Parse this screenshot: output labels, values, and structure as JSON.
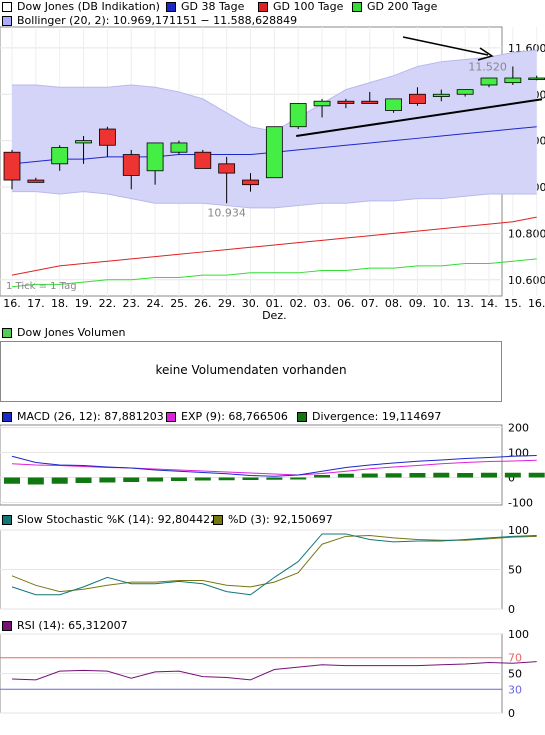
{
  "legend_main": {
    "items": [
      {
        "label": "Dow Jones (DB Indikation)",
        "color": "#ffffff"
      },
      {
        "label": "GD 38 Tage",
        "color": "#1c28c8"
      },
      {
        "label": "GD 100 Tage",
        "color": "#dd2222"
      },
      {
        "label": "GD 200 Tage",
        "color": "#33dd33"
      }
    ],
    "bollinger": {
      "label": "Bollinger (20, 2): 10.969,171151 − 11.588,628849",
      "color": "#aaaaff"
    }
  },
  "legend_volume": {
    "label": "Dow Jones Volumen",
    "color": "#55cc55"
  },
  "volume_message": "keine Volumendaten vorhanden",
  "legend_macd": [
    {
      "label": "MACD (26, 12): 87,881203",
      "color": "#1c28c8"
    },
    {
      "label": "EXP (9): 68,766506",
      "color": "#dd22dd"
    },
    {
      "label": "Divergence: 19,114697",
      "color": "#117711"
    }
  ],
  "legend_stoch": [
    {
      "label": "Slow Stochastic %K (14): 92,804422",
      "color": "#117777"
    },
    {
      "label": "%D (3): 92,150697",
      "color": "#777711"
    }
  ],
  "legend_rsi": {
    "label": "RSI (14): 65,312007",
    "color": "#771177"
  },
  "tick_note": "1 Tick = 1 Tag",
  "month_label": "Dez.",
  "chart_data": [
    {
      "type": "candlestick",
      "x_labels": [
        "16.",
        "17.",
        "18.",
        "19.",
        "22.",
        "23.",
        "24.",
        "25.",
        "26.",
        "29.",
        "30.",
        "01.",
        "02.",
        "03.",
        "06.",
        "07.",
        "08.",
        "09.",
        "10.",
        "13.",
        "14.",
        "15.",
        "16."
      ],
      "y_ticks": [
        "11.600",
        "11.400",
        "11.200",
        "11.000",
        "10.800",
        "10.600"
      ],
      "ylim": [
        10.53,
        11.69
      ],
      "annotations": {
        "max_label": "11.520",
        "min_label": "10.934"
      },
      "candles": [
        {
          "o": 11.15,
          "h": 11.16,
          "l": 10.99,
          "c": 11.03
        },
        {
          "o": 11.03,
          "h": 11.04,
          "l": 11.02,
          "c": 11.02
        },
        {
          "o": 11.1,
          "h": 11.18,
          "l": 11.07,
          "c": 11.17
        },
        {
          "o": 11.19,
          "h": 11.22,
          "l": 11.1,
          "c": 11.2
        },
        {
          "o": 11.25,
          "h": 11.26,
          "l": 11.13,
          "c": 11.18
        },
        {
          "o": 11.14,
          "h": 11.16,
          "l": 10.99,
          "c": 11.05
        },
        {
          "o": 11.07,
          "h": 11.19,
          "l": 11.01,
          "c": 11.19
        },
        {
          "o": 11.15,
          "h": 11.2,
          "l": 11.14,
          "c": 11.19
        },
        {
          "o": 11.15,
          "h": 11.16,
          "l": 11.08,
          "c": 11.08
        },
        {
          "o": 11.1,
          "h": 11.13,
          "l": 10.93,
          "c": 11.06
        },
        {
          "o": 11.03,
          "h": 11.06,
          "l": 10.98,
          "c": 11.01
        },
        {
          "o": 11.04,
          "h": 11.26,
          "l": 11.04,
          "c": 11.26
        },
        {
          "o": 11.26,
          "h": 11.36,
          "l": 11.25,
          "c": 11.36
        },
        {
          "o": 11.35,
          "h": 11.38,
          "l": 11.3,
          "c": 11.37
        },
        {
          "o": 11.37,
          "h": 11.38,
          "l": 11.34,
          "c": 11.36
        },
        {
          "o": 11.37,
          "h": 11.41,
          "l": 11.36,
          "c": 11.36
        },
        {
          "o": 11.33,
          "h": 11.38,
          "l": 11.32,
          "c": 11.38
        },
        {
          "o": 11.4,
          "h": 11.43,
          "l": 11.35,
          "c": 11.36
        },
        {
          "o": 11.39,
          "h": 11.42,
          "l": 11.37,
          "c": 11.4
        },
        {
          "o": 11.4,
          "h": 11.42,
          "l": 11.39,
          "c": 11.42
        },
        {
          "o": 11.44,
          "h": 11.47,
          "l": 11.43,
          "c": 11.47
        },
        {
          "o": 11.45,
          "h": 11.52,
          "l": 11.44,
          "c": 11.47
        },
        {
          "o": 11.47,
          "h": 11.48,
          "l": 11.46,
          "c": 11.47
        }
      ],
      "boll_upper": [
        11.44,
        11.44,
        11.43,
        11.43,
        11.43,
        11.44,
        11.43,
        11.41,
        11.38,
        11.32,
        11.26,
        11.24,
        11.3,
        11.36,
        11.42,
        11.45,
        11.48,
        11.52,
        11.54,
        11.55,
        11.56,
        11.58,
        11.59
      ],
      "boll_lower": [
        10.98,
        10.98,
        10.97,
        10.98,
        10.97,
        10.95,
        10.93,
        10.93,
        10.93,
        10.92,
        10.91,
        10.91,
        10.92,
        10.93,
        10.93,
        10.94,
        10.94,
        10.95,
        10.95,
        10.96,
        10.97,
        10.97,
        10.97
      ],
      "gd38": [
        11.1,
        11.11,
        11.12,
        11.12,
        11.13,
        11.13,
        11.13,
        11.14,
        11.14,
        11.14,
        11.14,
        11.15,
        11.16,
        11.17,
        11.18,
        11.19,
        11.2,
        11.21,
        11.22,
        11.23,
        11.24,
        11.25,
        11.26
      ],
      "gd100": [
        10.62,
        10.64,
        10.66,
        10.67,
        10.68,
        10.69,
        10.7,
        10.71,
        10.72,
        10.73,
        10.74,
        10.75,
        10.76,
        10.77,
        10.78,
        10.79,
        10.8,
        10.81,
        10.82,
        10.83,
        10.84,
        10.85,
        10.87
      ],
      "gd200": [
        10.57,
        10.58,
        10.58,
        10.59,
        10.6,
        10.6,
        10.61,
        10.61,
        10.62,
        10.62,
        10.63,
        10.63,
        10.63,
        10.64,
        10.64,
        10.65,
        10.65,
        10.66,
        10.66,
        10.67,
        10.67,
        10.68,
        10.69
      ]
    },
    {
      "type": "bar+line",
      "name": "MACD",
      "y_ticks": [
        "200",
        "100",
        "0",
        "-100"
      ],
      "ylim": [
        -110,
        210
      ],
      "macd": [
        85,
        60,
        50,
        48,
        42,
        38,
        30,
        25,
        20,
        15,
        8,
        5,
        10,
        25,
        40,
        50,
        58,
        65,
        70,
        76,
        80,
        85,
        88
      ],
      "exp": [
        55,
        50,
        48,
        44,
        40,
        38,
        34,
        30,
        26,
        22,
        18,
        14,
        10,
        16,
        25,
        35,
        42,
        48,
        55,
        60,
        64,
        66,
        69
      ],
      "divergence": [
        -25,
        -28,
        -25,
        -22,
        -20,
        -18,
        -16,
        -14,
        -12,
        -11,
        -10,
        -9,
        0,
        10,
        15,
        16,
        17,
        18,
        19,
        18,
        19,
        19,
        19
      ]
    },
    {
      "type": "line",
      "name": "Slow Stochastic",
      "y_ticks": [
        "100",
        "50",
        "0"
      ],
      "ylim": [
        0,
        100
      ],
      "k": [
        28,
        18,
        18,
        28,
        40,
        32,
        32,
        35,
        32,
        22,
        18,
        40,
        60,
        95,
        95,
        88,
        85,
        86,
        86,
        88,
        90,
        92,
        93
      ],
      "d": [
        42,
        30,
        22,
        25,
        30,
        34,
        34,
        36,
        36,
        30,
        28,
        34,
        46,
        82,
        92,
        93,
        90,
        88,
        87,
        87,
        89,
        91,
        92
      ]
    },
    {
      "type": "line",
      "name": "RSI",
      "y_ticks": [
        "100",
        "70",
        "50",
        "30",
        "0"
      ],
      "ylim": [
        0,
        100
      ],
      "rsi": [
        43,
        42,
        53,
        54,
        53,
        44,
        52,
        53,
        46,
        45,
        42,
        55,
        58,
        61,
        60,
        60,
        60,
        60,
        61,
        62,
        64,
        63,
        65
      ]
    }
  ]
}
